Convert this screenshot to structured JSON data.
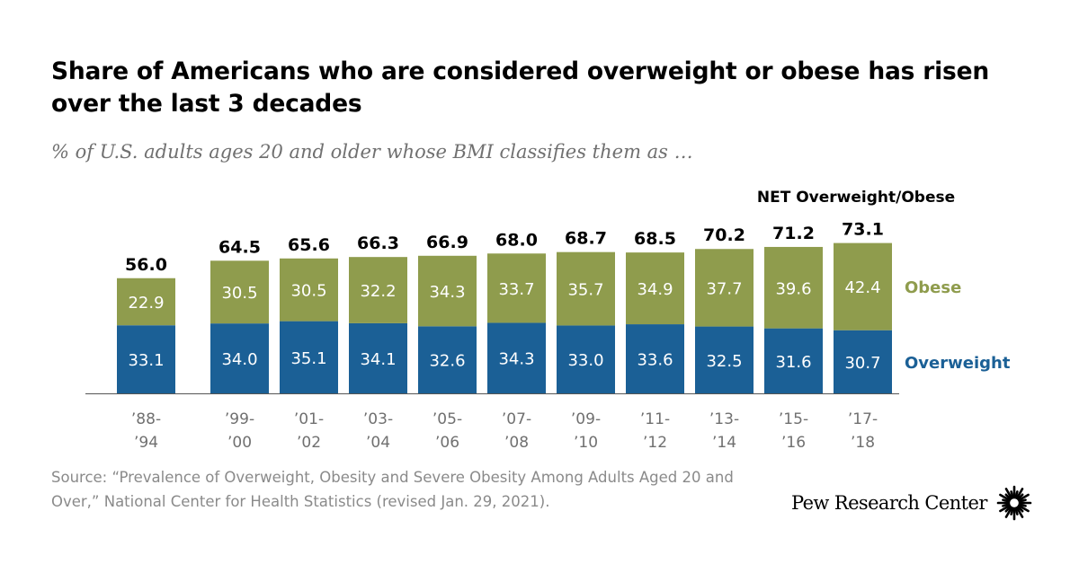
{
  "title": "Share of Americans who are considered overweight or obese has risen over the last 3 decades",
  "subtitle": "% of U.S. adults ages 20 and older whose BMI classifies them as …",
  "source": "Source: “Prevalence of Overweight, Obesity and Severe Obesity Among Adults Aged 20 and Over,” National Center for Health Statistics (revised Jan. 29, 2021).",
  "brand": "Pew Research Center",
  "chart_data": {
    "type": "bar",
    "stacked": true,
    "categories": [
      [
        "’88-",
        "’94"
      ],
      [
        "’99-",
        "’00"
      ],
      [
        "’01-",
        "’02"
      ],
      [
        "’03-",
        "’04"
      ],
      [
        "’05-",
        "’06"
      ],
      [
        "’07-",
        "’08"
      ],
      [
        "’09-",
        "’10"
      ],
      [
        "’11-",
        "’12"
      ],
      [
        "’13-",
        "’14"
      ],
      [
        "’15-",
        "’16"
      ],
      [
        "’17-",
        "’18"
      ]
    ],
    "series": [
      {
        "name": "Overweight",
        "color": "#1b6096",
        "values": [
          33.1,
          34.0,
          35.1,
          34.1,
          32.6,
          34.3,
          33.0,
          33.6,
          32.5,
          31.6,
          30.7
        ]
      },
      {
        "name": "Obese",
        "color": "#8f9c4d",
        "values": [
          22.9,
          30.5,
          30.5,
          32.2,
          34.3,
          33.7,
          35.7,
          34.9,
          37.7,
          39.6,
          42.4
        ]
      }
    ],
    "totals": [
      56.0,
      64.5,
      65.6,
      66.3,
      66.9,
      68.0,
      68.7,
      68.5,
      70.2,
      71.2,
      73.1
    ],
    "total_label": "NET Overweight/Obese",
    "ylim": [
      0,
      80
    ],
    "grid": false,
    "legend": "right"
  }
}
